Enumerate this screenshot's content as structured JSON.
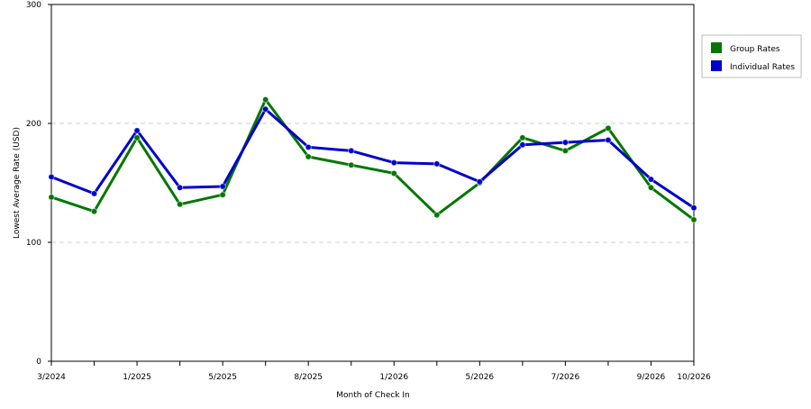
{
  "chart_data": {
    "type": "line",
    "title": "",
    "xlabel": "Month of Check In",
    "ylabel": "Lowest Average Rate (USD)",
    "ylim": [
      0,
      300
    ],
    "yticks": [
      "0",
      "100",
      "200",
      "300"
    ],
    "grid": "horizontal dashed at 100, 200",
    "legend_position": "right",
    "x_tick_labels": [
      "3/2024",
      "",
      "1/2025",
      "",
      "5/2025",
      "",
      "8/2025",
      "",
      "1/2026",
      "",
      "5/2026",
      "",
      "7/2026",
      "",
      "9/2026",
      "10/2026"
    ],
    "series": [
      {
        "name": "Group Rates",
        "color": "#007700",
        "values": [
          138,
          126,
          188,
          132,
          140,
          220,
          172,
          165,
          158,
          123,
          150,
          188,
          177,
          196,
          146,
          119
        ]
      },
      {
        "name": "Individual Rates",
        "color": "#0000cc",
        "values": [
          155,
          141,
          194,
          146,
          147,
          212,
          180,
          177,
          167,
          166,
          151,
          182,
          184,
          186,
          153,
          129
        ]
      }
    ]
  }
}
